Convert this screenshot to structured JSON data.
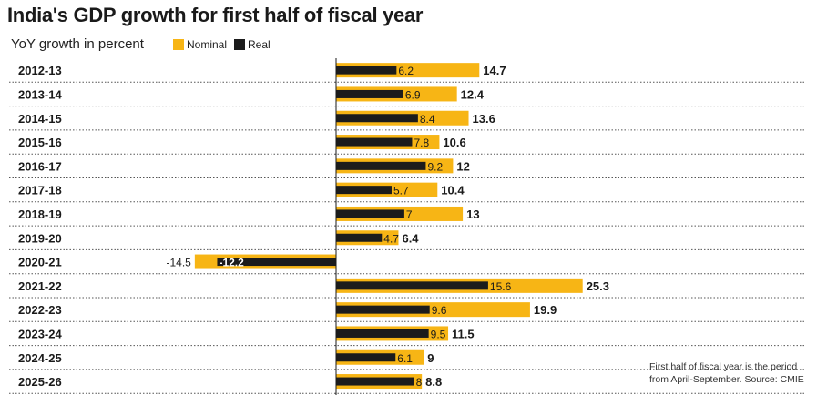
{
  "chart_data": {
    "type": "bar",
    "title": "India's GDP growth for first half of fiscal year",
    "subtitle": "YoY growth in percent",
    "categories": [
      "2012-13",
      "2013-14",
      "2014-15",
      "2015-16",
      "2016-17",
      "2017-18",
      "2018-19",
      "2019-20",
      "2020-21",
      "2021-22",
      "2022-23",
      "2023-24",
      "2024-25",
      "2025-26"
    ],
    "series": [
      {
        "name": "Nominal",
        "values": [
          14.7,
          12.4,
          13.6,
          10.6,
          12,
          10.4,
          13,
          6.4,
          -14.5,
          25.3,
          19.9,
          11.5,
          9,
          8.8
        ]
      },
      {
        "name": "Real",
        "values": [
          6.2,
          6.9,
          8.4,
          7.8,
          9.2,
          5.7,
          7,
          4.7,
          -12.2,
          15.6,
          9.6,
          9.5,
          6.1,
          8
        ]
      }
    ],
    "colors": {
      "nominal": "#f7b515",
      "real": "#1c1c1c"
    },
    "legend_position": "top",
    "grid": "dotted row separators",
    "xlim": [
      -17.5,
      33
    ]
  },
  "note": "First half of fiscal year is the period from April-September. Source: CMIE"
}
